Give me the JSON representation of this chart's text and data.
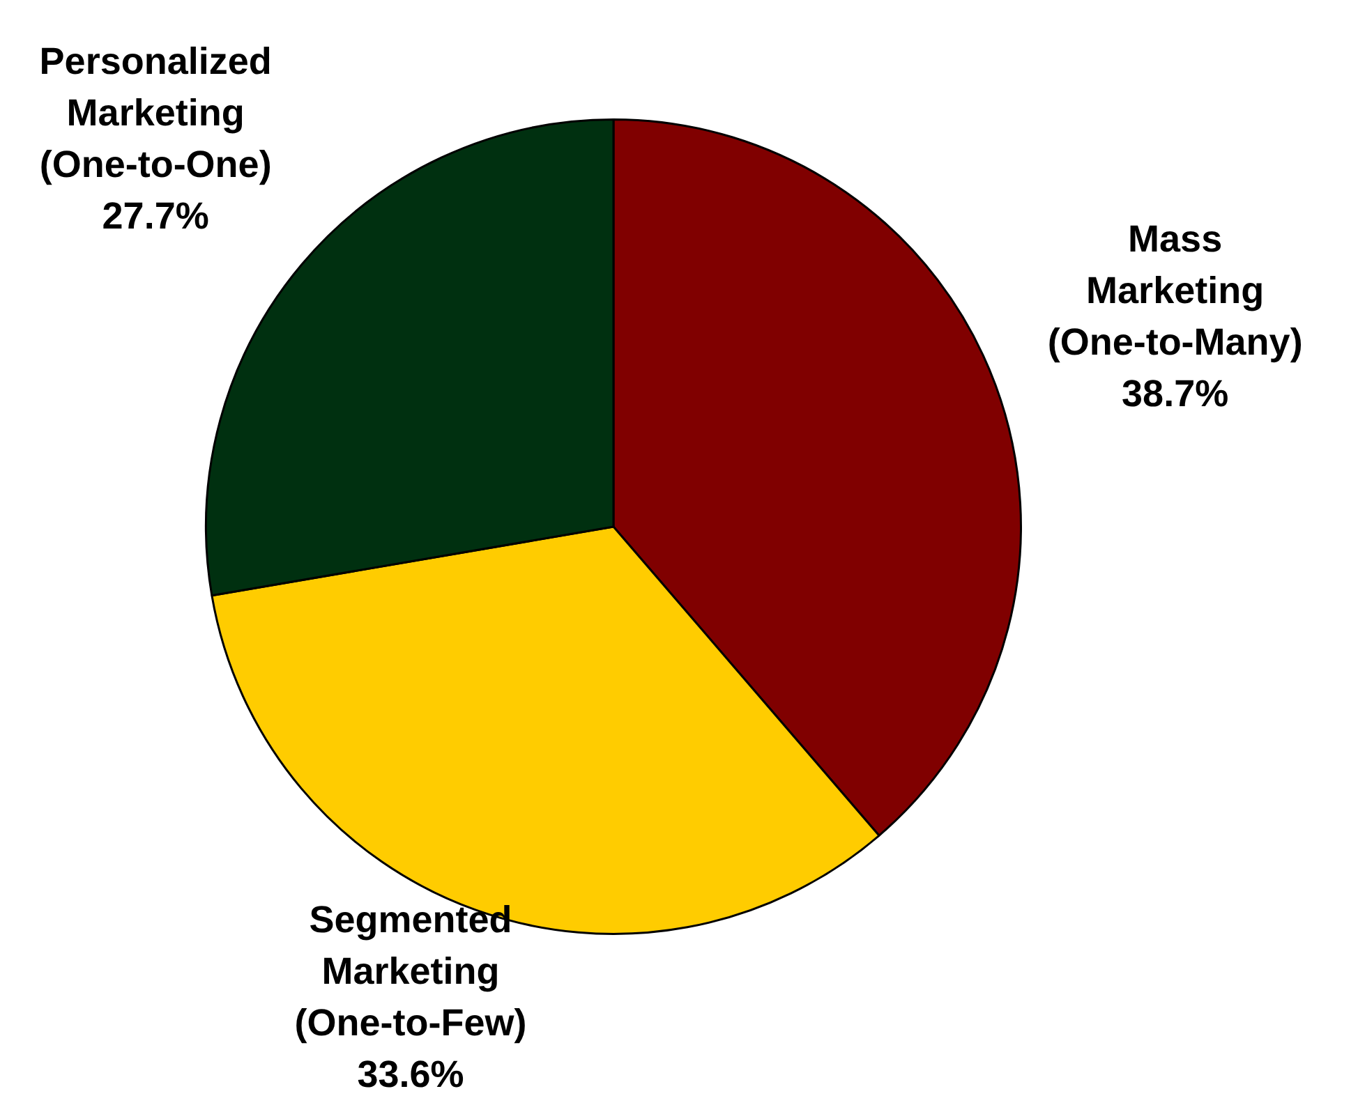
{
  "chart_data": {
    "type": "pie",
    "categories": [
      "Mass Marketing (One-to-Many)",
      "Segmented Marketing (One-to-Few)",
      "Personalized Marketing (One-to-One)"
    ],
    "values": [
      38.7,
      33.6,
      27.7
    ],
    "value_labels": [
      "38.7%",
      "33.6%",
      "27.7%"
    ],
    "colors": [
      "#800000",
      "#ffcc00",
      "#003010"
    ],
    "legend": false
  }
}
